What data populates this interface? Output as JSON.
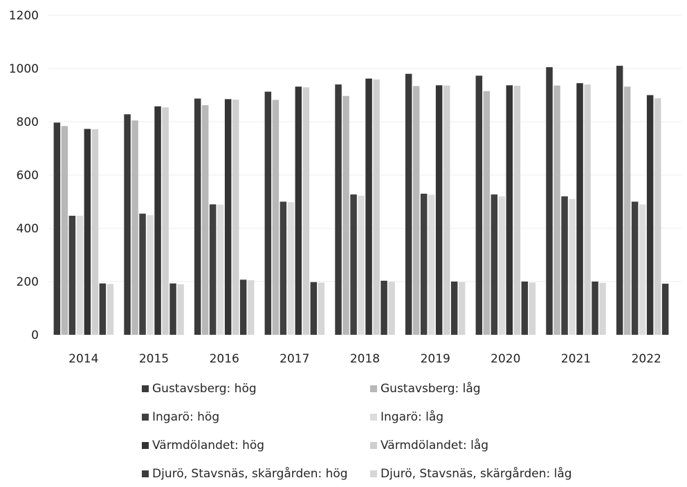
{
  "chart_data": {
    "type": "bar",
    "categories": [
      "2014",
      "2015",
      "2016",
      "2017",
      "2018",
      "2019",
      "2020",
      "2021",
      "2022"
    ],
    "ylim": [
      0,
      1200
    ],
    "yticks": [
      0,
      200,
      400,
      600,
      800,
      1000,
      1200
    ],
    "grid": true,
    "legend_position": "bottom",
    "series": [
      {
        "name": "Gustavsberg: hög",
        "color": "#3a3a3a",
        "values": [
          797,
          828,
          887,
          913,
          940,
          980,
          973,
          1005,
          1010
        ]
      },
      {
        "name": "Gustavsberg: låg",
        "color": "#b8b8b8",
        "values": [
          784,
          805,
          862,
          882,
          897,
          934,
          915,
          936,
          932
        ]
      },
      {
        "name": "Ingarö: hög",
        "color": "#404040",
        "values": [
          447,
          455,
          490,
          500,
          527,
          530,
          527,
          520,
          500
        ]
      },
      {
        "name": "Ingarö: låg",
        "color": "#dcdcdc",
        "values": [
          447,
          449,
          489,
          498,
          522,
          526,
          520,
          510,
          490
        ]
      },
      {
        "name": "Värmdölandet: hög",
        "color": "#343434",
        "values": [
          773,
          858,
          885,
          932,
          962,
          937,
          937,
          945,
          900
        ]
      },
      {
        "name": "Värmdölandet: låg",
        "color": "#cfcfcf",
        "values": [
          772,
          854,
          883,
          929,
          959,
          936,
          935,
          940,
          888
        ]
      },
      {
        "name": "Djurö, Stavsnäs, skärgården: hög",
        "color": "#3c3c3c",
        "values": [
          193,
          193,
          207,
          198,
          203,
          200,
          200,
          200,
          192
        ]
      },
      {
        "name": "Djurö, Stavsnäs, skärgården: låg",
        "color": "#d6d6d6",
        "values": [
          191,
          190,
          205,
          196,
          199,
          198,
          196,
          195,
          0
        ]
      }
    ]
  }
}
